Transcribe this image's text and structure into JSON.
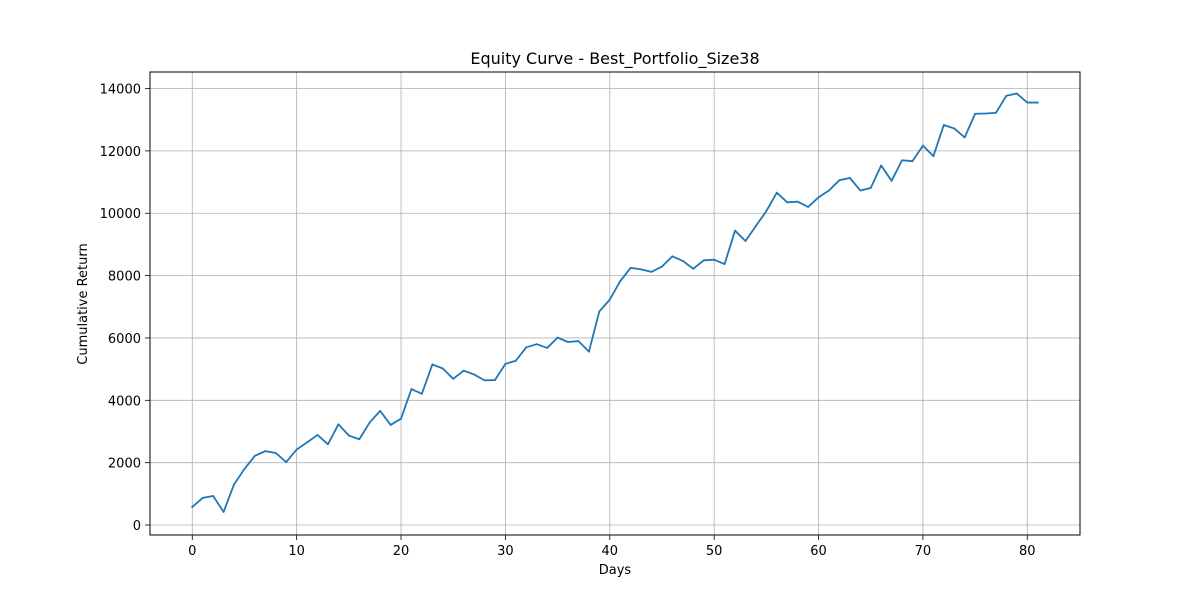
{
  "chart_data": {
    "type": "line",
    "title": "Equity Curve - Best_Portfolio_Size38",
    "xlabel": "Days",
    "ylabel": "Cumulative Return",
    "xlim": [
      -4.05,
      85.05
    ],
    "ylim": [
      -320,
      14530
    ],
    "xticks": [
      0,
      10,
      20,
      30,
      40,
      50,
      60,
      70,
      80
    ],
    "xtick_labels": [
      "0",
      "10",
      "20",
      "30",
      "40",
      "50",
      "60",
      "70",
      "80"
    ],
    "yticks": [
      0,
      2000,
      4000,
      6000,
      8000,
      10000,
      12000,
      14000
    ],
    "ytick_labels": [
      "0",
      "2000",
      "4000",
      "6000",
      "8000",
      "10000",
      "12000",
      "14000"
    ],
    "grid": true,
    "legend": false,
    "line_color": "#1f77b4",
    "grid_color": "#b0b0b0",
    "series": [
      {
        "x": [
          0,
          1,
          2,
          3,
          4,
          5,
          6,
          7,
          8,
          9,
          10,
          11,
          12,
          13,
          14,
          15,
          16,
          17,
          18,
          19,
          20,
          21,
          22,
          23,
          24,
          25,
          26,
          27,
          28,
          29,
          30,
          31,
          32,
          33,
          34,
          35,
          36,
          37,
          38,
          39,
          40,
          41,
          42,
          43,
          44,
          45,
          46,
          47,
          48,
          49,
          50,
          51,
          52,
          53,
          54,
          55,
          56,
          57,
          58,
          59,
          60,
          61,
          62,
          63,
          64,
          65,
          66,
          67,
          68,
          69,
          70,
          71,
          72,
          73,
          74,
          75,
          76,
          77,
          78,
          79,
          80,
          81
        ],
        "y": [
          580,
          870,
          930,
          420,
          1300,
          1800,
          2220,
          2370,
          2310,
          2020,
          2420,
          2650,
          2890,
          2590,
          3230,
          2870,
          2750,
          3290,
          3660,
          3210,
          3410,
          4360,
          4210,
          5150,
          5020,
          4690,
          4950,
          4830,
          4640,
          4650,
          5170,
          5270,
          5700,
          5800,
          5680,
          6010,
          5870,
          5900,
          5560,
          6850,
          7230,
          7820,
          8250,
          8200,
          8120,
          8290,
          8620,
          8470,
          8220,
          8490,
          8510,
          8370,
          9440,
          9110,
          9590,
          10070,
          10660,
          10350,
          10370,
          10200,
          10510,
          10730,
          11060,
          11130,
          10730,
          10810,
          11530,
          11040,
          11700,
          11670,
          12170,
          11830,
          12830,
          12720,
          12430,
          13190,
          13200,
          13220,
          13770,
          13840,
          13550,
          13550
        ]
      }
    ]
  }
}
